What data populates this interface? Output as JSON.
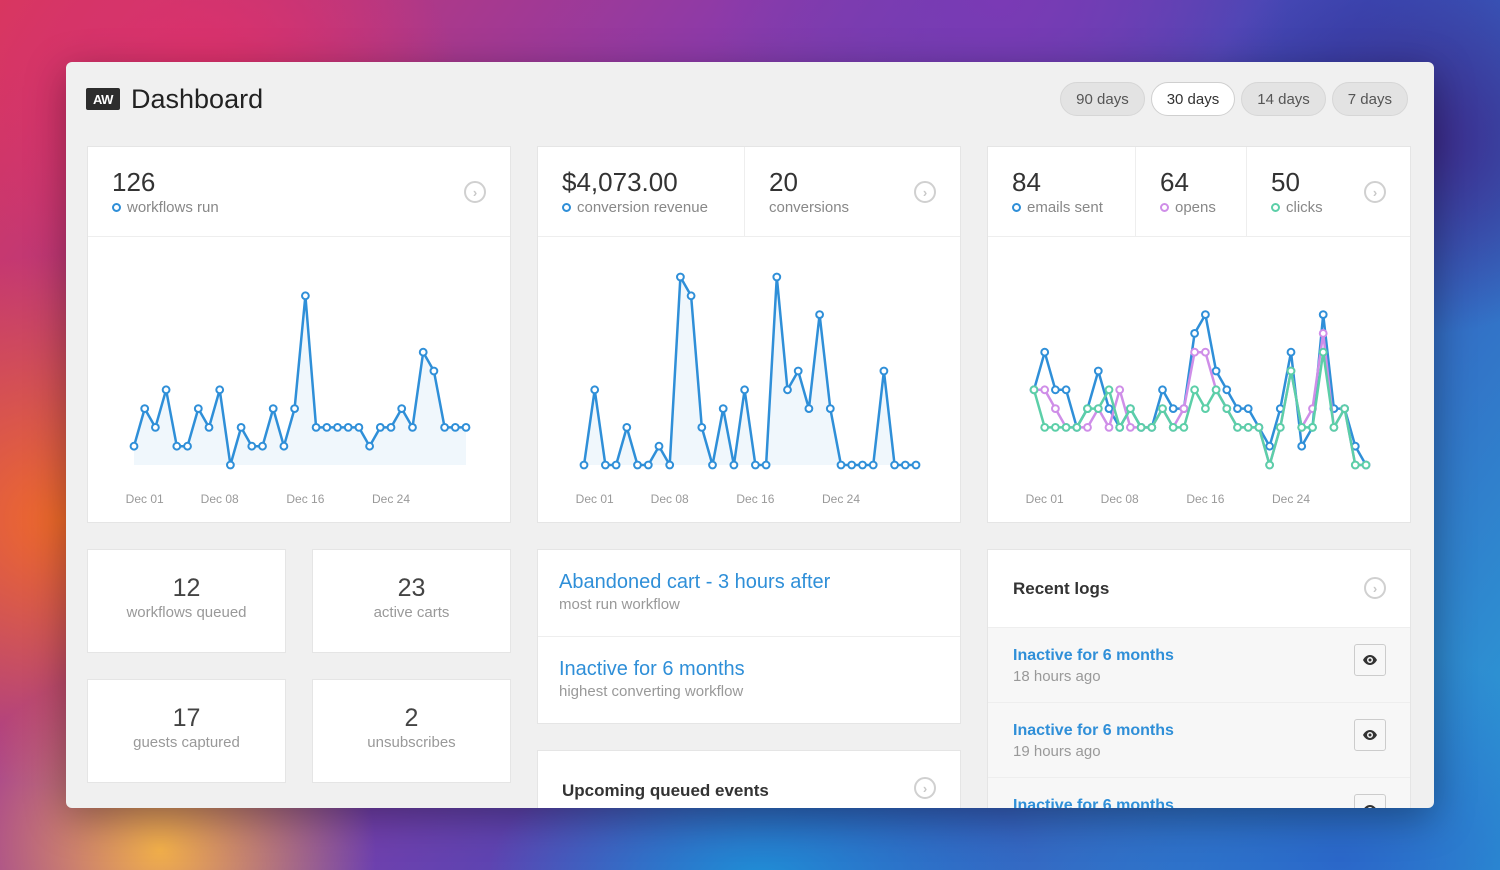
{
  "app": {
    "logo": "AW",
    "title": "Dashboard"
  },
  "ranges": [
    {
      "label": "90 days",
      "active": false
    },
    {
      "label": "30 days",
      "active": true
    },
    {
      "label": "14 days",
      "active": false
    },
    {
      "label": "7 days",
      "active": false
    }
  ],
  "workflows_card": {
    "value": "126",
    "label": "workflows run"
  },
  "conversions_card": {
    "revenue_value": "$4,073.00",
    "revenue_label": "conversion revenue",
    "count_value": "20",
    "count_label": "conversions"
  },
  "email_card": {
    "sent_value": "84",
    "sent_label": "emails sent",
    "opens_value": "64",
    "opens_label": "opens",
    "clicks_value": "50",
    "clicks_label": "clicks"
  },
  "minis": {
    "queued": {
      "value": "12",
      "label": "workflows queued"
    },
    "carts": {
      "value": "23",
      "label": "active carts"
    },
    "guests": {
      "value": "17",
      "label": "guests captured"
    },
    "unsubs": {
      "value": "2",
      "label": "unsubscribes"
    }
  },
  "top_workflows": [
    {
      "title": "Abandoned cart - 3 hours after",
      "subtitle": "most run workflow"
    },
    {
      "title": "Inactive for 6 months",
      "subtitle": "highest converting workflow"
    }
  ],
  "upcoming": {
    "title": "Upcoming queued events"
  },
  "recent_logs": {
    "title": "Recent logs",
    "items": [
      {
        "title": "Inactive for 6 months",
        "time": "18 hours ago"
      },
      {
        "title": "Inactive for 6 months",
        "time": "19 hours ago"
      },
      {
        "title": "Inactive for 6 months",
        "time": ""
      }
    ]
  },
  "colors": {
    "blue": "#2f8fd8",
    "purple": "#cf8ee8",
    "green": "#5ccfa8"
  },
  "chart_data": [
    {
      "type": "line",
      "x": [
        "Nov 30",
        "Dec 01",
        "Dec 02",
        "Dec 03",
        "Dec 04",
        "Dec 05",
        "Dec 06",
        "Dec 07",
        "Dec 08",
        "Dec 09",
        "Dec 10",
        "Dec 11",
        "Dec 12",
        "Dec 13",
        "Dec 14",
        "Dec 15",
        "Dec 16",
        "Dec 17",
        "Dec 18",
        "Dec 19",
        "Dec 20",
        "Dec 21",
        "Dec 22",
        "Dec 23",
        "Dec 24",
        "Dec 25",
        "Dec 26",
        "Dec 27",
        "Dec 28",
        "Dec 29",
        "Dec 30",
        "Dec 31"
      ],
      "tick_labels": [
        "Dec 01",
        "Dec 08",
        "Dec 16",
        "Dec 24"
      ],
      "series": [
        {
          "values": [
            1,
            3,
            2,
            4,
            1,
            1,
            3,
            2,
            4,
            0,
            2,
            1,
            1,
            3,
            1,
            3,
            9,
            2,
            2,
            2,
            2,
            2,
            1,
            2,
            2,
            3,
            2,
            6,
            5,
            2,
            2,
            2
          ],
          "color": "#2f8fd8"
        }
      ],
      "ylim": [
        0,
        10
      ]
    },
    {
      "type": "line",
      "x": [
        "Nov 30",
        "Dec 01",
        "Dec 02",
        "Dec 03",
        "Dec 04",
        "Dec 05",
        "Dec 06",
        "Dec 07",
        "Dec 08",
        "Dec 09",
        "Dec 10",
        "Dec 11",
        "Dec 12",
        "Dec 13",
        "Dec 14",
        "Dec 15",
        "Dec 16",
        "Dec 17",
        "Dec 18",
        "Dec 19",
        "Dec 20",
        "Dec 21",
        "Dec 22",
        "Dec 23",
        "Dec 24",
        "Dec 25",
        "Dec 26",
        "Dec 27",
        "Dec 28",
        "Dec 29",
        "Dec 30",
        "Dec 31"
      ],
      "tick_labels": [
        "Dec 01",
        "Dec 08",
        "Dec 16",
        "Dec 24"
      ],
      "series": [
        {
          "values": [
            0,
            4,
            0,
            0,
            2,
            0,
            0,
            1,
            0,
            10,
            9,
            2,
            0,
            3,
            0,
            4,
            0,
            0,
            10,
            4,
            5,
            3,
            8,
            3,
            0,
            0,
            0,
            0,
            5,
            0,
            0,
            0
          ],
          "color": "#2f8fd8"
        }
      ],
      "ylim": [
        0,
        10
      ]
    },
    {
      "type": "line",
      "x": [
        "Nov 30",
        "Dec 01",
        "Dec 02",
        "Dec 03",
        "Dec 04",
        "Dec 05",
        "Dec 06",
        "Dec 07",
        "Dec 08",
        "Dec 09",
        "Dec 10",
        "Dec 11",
        "Dec 12",
        "Dec 13",
        "Dec 14",
        "Dec 15",
        "Dec 16",
        "Dec 17",
        "Dec 18",
        "Dec 19",
        "Dec 20",
        "Dec 21",
        "Dec 22",
        "Dec 23",
        "Dec 24",
        "Dec 25",
        "Dec 26",
        "Dec 27",
        "Dec 28",
        "Dec 29",
        "Dec 30",
        "Dec 31"
      ],
      "tick_labels": [
        "Dec 01",
        "Dec 08",
        "Dec 16",
        "Dec 24"
      ],
      "series": [
        {
          "name": "emails sent",
          "values": [
            4,
            6,
            4,
            4,
            2,
            3,
            5,
            3,
            2,
            3,
            2,
            2,
            4,
            3,
            3,
            7,
            8,
            5,
            4,
            3,
            3,
            2,
            1,
            3,
            6,
            1,
            2,
            8,
            3,
            3,
            1,
            0
          ],
          "color": "#2f8fd8"
        },
        {
          "name": "opens",
          "values": [
            4,
            4,
            3,
            2,
            2,
            2,
            3,
            2,
            4,
            2,
            2,
            2,
            3,
            2,
            3,
            6,
            6,
            4,
            3,
            2,
            2,
            2,
            0,
            2,
            5,
            2,
            3,
            7,
            2,
            3,
            0,
            0
          ],
          "color": "#cf8ee8"
        },
        {
          "name": "clicks",
          "values": [
            4,
            2,
            2,
            2,
            2,
            3,
            3,
            4,
            2,
            3,
            2,
            2,
            3,
            2,
            2,
            4,
            3,
            4,
            3,
            2,
            2,
            2,
            0,
            2,
            5,
            2,
            2,
            6,
            2,
            3,
            0,
            0
          ],
          "color": "#5ccfa8"
        }
      ],
      "ylim": [
        0,
        10
      ]
    }
  ]
}
